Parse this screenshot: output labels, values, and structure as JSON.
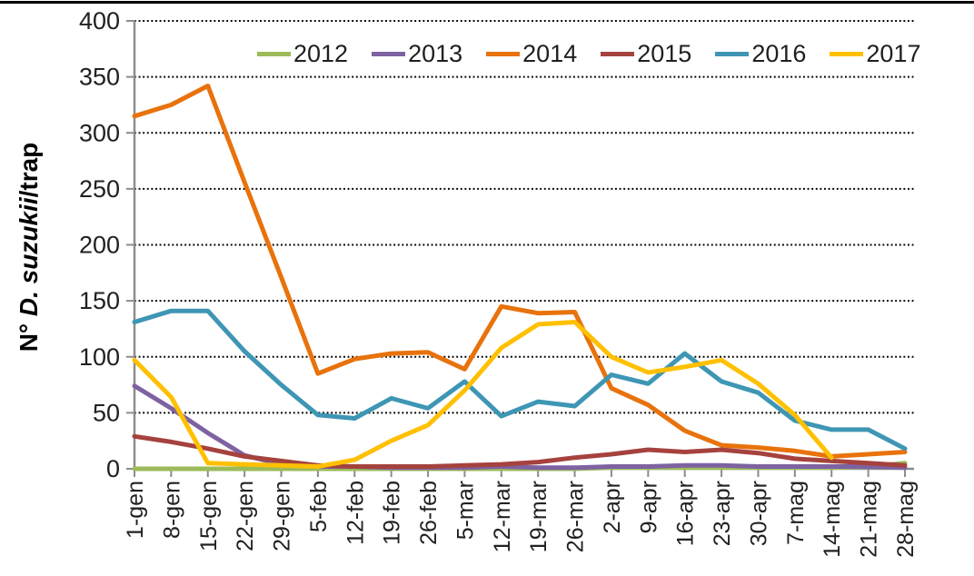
{
  "figure": {
    "ylabel": {
      "prefix": "N° ",
      "species": "D. suzukii",
      "suffix": "/trap"
    }
  },
  "chart_data": {
    "type": "line",
    "title": "",
    "xlabel": "",
    "ylabel": "N° D. suzukii/trap",
    "ylim": [
      0,
      400
    ],
    "ytick_step": 50,
    "yticks": [
      0,
      50,
      100,
      150,
      200,
      250,
      300,
      350,
      400
    ],
    "grid": "horizontal-dotted",
    "legend_position": "top",
    "axis_color": "#8c8c8c",
    "grid_color": "#000000",
    "text_color": "#212121",
    "categories": [
      "1-gen",
      "8-gen",
      "15-gen",
      "22-gen",
      "29-gen",
      "5-feb",
      "12-feb",
      "19-feb",
      "26-feb",
      "5-mar",
      "12-mar",
      "19-mar",
      "26-mar",
      "2-apr",
      "9-apr",
      "16-apr",
      "23-apr",
      "30-apr",
      "7-mag",
      "14-mag",
      "21-mag",
      "28-mag"
    ],
    "series": [
      {
        "name": "2012",
        "color": "#9bbb59",
        "values": [
          0,
          0,
          0,
          0,
          0,
          0,
          0,
          0,
          0,
          0,
          0,
          0,
          0,
          1,
          1,
          1,
          1,
          1,
          1,
          1,
          2,
          5
        ]
      },
      {
        "name": "2013",
        "color": "#7e62a1",
        "values": [
          74,
          54,
          32,
          12,
          4,
          2,
          2,
          1,
          1,
          1,
          2,
          1,
          1,
          2,
          2,
          3,
          3,
          2,
          2,
          2,
          2,
          1
        ]
      },
      {
        "name": "2014",
        "color": "#e8720c",
        "values": [
          315,
          325,
          342,
          256,
          171,
          85,
          98,
          103,
          104,
          89,
          145,
          139,
          140,
          72,
          57,
          34,
          21,
          19,
          16,
          11,
          13,
          15
        ]
      },
      {
        "name": "2015",
        "color": "#a5423e",
        "values": [
          29,
          24,
          18,
          11,
          7,
          3,
          2,
          2,
          2,
          3,
          4,
          6,
          10,
          13,
          17,
          15,
          17,
          14,
          9,
          7,
          5,
          3
        ]
      },
      {
        "name": "2016",
        "color": "#3e96b4",
        "values": [
          131,
          141,
          141,
          105,
          75,
          48,
          45,
          63,
          54,
          78,
          47,
          60,
          56,
          84,
          76,
          103,
          78,
          68,
          43,
          35,
          35,
          18
        ]
      },
      {
        "name": "2017",
        "color": "#ffc000",
        "values": [
          97,
          64,
          5,
          4,
          3,
          2,
          8,
          25,
          39,
          70,
          108,
          129,
          131,
          100,
          86,
          91,
          97,
          76,
          48,
          10,
          null,
          null
        ]
      }
    ]
  }
}
